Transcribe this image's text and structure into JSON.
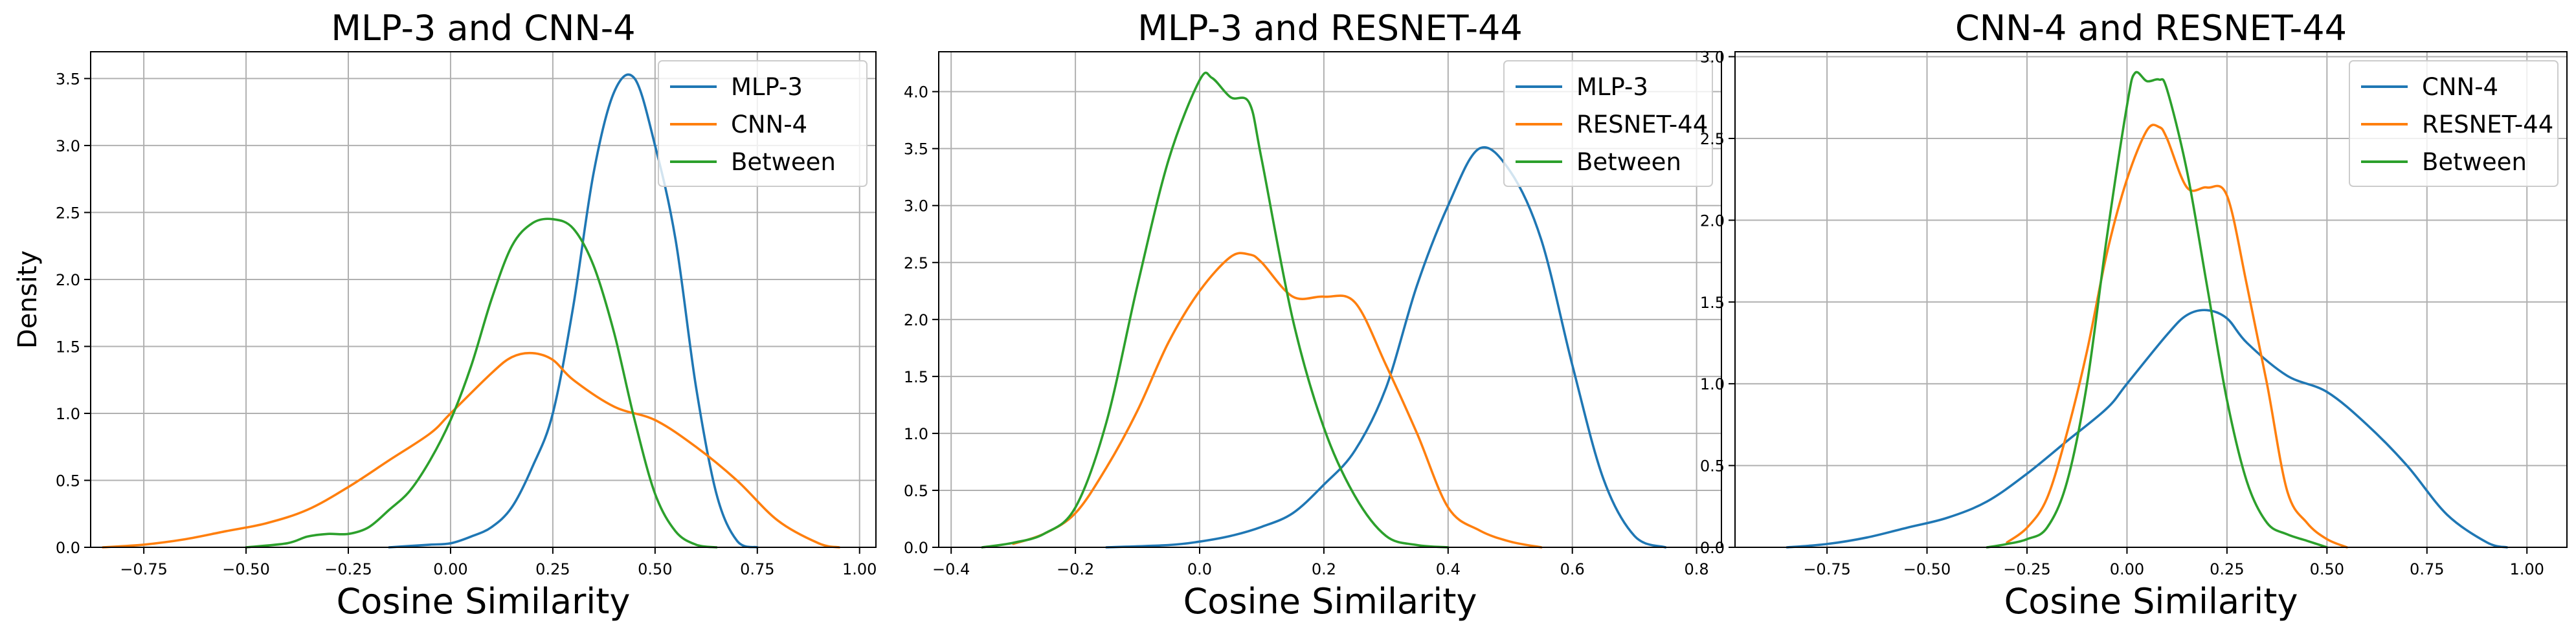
{
  "chart_data": [
    {
      "type": "line",
      "title": "MLP-3 and CNN-4",
      "xlabel": "Cosine Similarity",
      "ylabel": "Density",
      "xlim": [
        -0.88,
        1.04
      ],
      "ylim": [
        0,
        3.7
      ],
      "xticks": [
        -0.75,
        -0.5,
        -0.25,
        0,
        0.25,
        0.5,
        0.75,
        1.0
      ],
      "xtick_labels": [
        "−0.75",
        "−0.50",
        "−0.25",
        "0.00",
        "0.25",
        "0.50",
        "0.75",
        "1.00"
      ],
      "yticks": [
        0,
        0.5,
        1.0,
        1.5,
        2.0,
        2.5,
        3.0,
        3.5
      ],
      "ytick_labels": [
        "0.0",
        "0.5",
        "1.0",
        "1.5",
        "2.0",
        "2.5",
        "3.0",
        "3.5"
      ],
      "grid": true,
      "legend_position": "top-right",
      "series": [
        {
          "name": "MLP-3",
          "color": "#1f77b4",
          "x": [
            -0.15,
            -0.1,
            -0.05,
            0,
            0.05,
            0.1,
            0.15,
            0.2,
            0.25,
            0.3,
            0.35,
            0.4,
            0.45,
            0.5,
            0.55,
            0.6,
            0.65,
            0.7,
            0.75
          ],
          "y": [
            0,
            0.01,
            0.02,
            0.03,
            0.08,
            0.15,
            0.3,
            0.6,
            1.0,
            1.8,
            2.8,
            3.4,
            3.5,
            3.0,
            2.3,
            1.2,
            0.4,
            0.05,
            0
          ]
        },
        {
          "name": "CNN-4",
          "color": "#ff7f0e",
          "x": [
            -0.85,
            -0.75,
            -0.65,
            -0.55,
            -0.45,
            -0.35,
            -0.25,
            -0.15,
            -0.05,
            0,
            0.1,
            0.15,
            0.2,
            0.25,
            0.3,
            0.4,
            0.5,
            0.6,
            0.7,
            0.8,
            0.9,
            0.95
          ],
          "y": [
            0,
            0.02,
            0.06,
            0.12,
            0.18,
            0.28,
            0.45,
            0.65,
            0.85,
            1.0,
            1.3,
            1.42,
            1.45,
            1.4,
            1.25,
            1.05,
            0.95,
            0.75,
            0.5,
            0.2,
            0.03,
            0
          ]
        },
        {
          "name": "Between",
          "color": "#2ca02c",
          "x": [
            -0.5,
            -0.4,
            -0.35,
            -0.3,
            -0.25,
            -0.2,
            -0.15,
            -0.1,
            -0.05,
            0,
            0.05,
            0.1,
            0.15,
            0.2,
            0.25,
            0.3,
            0.35,
            0.4,
            0.45,
            0.5,
            0.55,
            0.6,
            0.65
          ],
          "y": [
            0,
            0.03,
            0.08,
            0.1,
            0.1,
            0.15,
            0.28,
            0.42,
            0.65,
            0.95,
            1.35,
            1.85,
            2.25,
            2.42,
            2.45,
            2.38,
            2.1,
            1.6,
            0.95,
            0.4,
            0.12,
            0.02,
            0
          ]
        }
      ]
    },
    {
      "type": "line",
      "title": "MLP-3 and RESNET-44",
      "xlabel": "Cosine Similarity",
      "ylabel": "",
      "xlim": [
        -0.42,
        0.84
      ],
      "ylim": [
        0,
        4.35
      ],
      "xticks": [
        -0.4,
        -0.2,
        0,
        0.2,
        0.4,
        0.6,
        0.8
      ],
      "xtick_labels": [
        "−0.4",
        "−0.2",
        "0.0",
        "0.2",
        "0.4",
        "0.6",
        "0.8"
      ],
      "yticks": [
        0,
        0.5,
        1.0,
        1.5,
        2.0,
        2.5,
        3.0,
        3.5,
        4.0
      ],
      "ytick_labels": [
        "0.0",
        "0.5",
        "1.0",
        "1.5",
        "2.0",
        "2.5",
        "3.0",
        "3.5",
        "4.0"
      ],
      "grid": true,
      "legend_position": "top-right",
      "series": [
        {
          "name": "MLP-3",
          "color": "#1f77b4",
          "x": [
            -0.15,
            -0.05,
            0,
            0.05,
            0.1,
            0.15,
            0.2,
            0.25,
            0.3,
            0.35,
            0.4,
            0.45,
            0.5,
            0.55,
            0.6,
            0.65,
            0.7,
            0.75
          ],
          "y": [
            0,
            0.02,
            0.05,
            0.1,
            0.18,
            0.3,
            0.55,
            0.85,
            1.4,
            2.3,
            3.0,
            3.5,
            3.3,
            2.7,
            1.6,
            0.6,
            0.1,
            0
          ]
        },
        {
          "name": "RESNET-44",
          "color": "#ff7f0e",
          "x": [
            -0.3,
            -0.25,
            -0.2,
            -0.15,
            -0.1,
            -0.05,
            0,
            0.05,
            0.08,
            0.1,
            0.15,
            0.2,
            0.25,
            0.3,
            0.35,
            0.4,
            0.45,
            0.5,
            0.55
          ],
          "y": [
            0.03,
            0.12,
            0.3,
            0.7,
            1.2,
            1.8,
            2.25,
            2.55,
            2.57,
            2.5,
            2.2,
            2.2,
            2.15,
            1.6,
            1.0,
            0.35,
            0.15,
            0.05,
            0
          ]
        },
        {
          "name": "Between",
          "color": "#2ca02c",
          "x": [
            -0.35,
            -0.3,
            -0.25,
            -0.2,
            -0.15,
            -0.1,
            -0.05,
            0,
            0.02,
            0.05,
            0.08,
            0.1,
            0.15,
            0.2,
            0.25,
            0.3,
            0.35,
            0.4
          ],
          "y": [
            0,
            0.04,
            0.12,
            0.35,
            1.1,
            2.3,
            3.4,
            4.1,
            4.12,
            3.95,
            3.9,
            3.4,
            2.0,
            1.05,
            0.45,
            0.1,
            0.02,
            0
          ]
        }
      ]
    },
    {
      "type": "line",
      "title": "CNN-4 and RESNET-44",
      "xlabel": "Cosine Similarity",
      "ylabel": "",
      "xlim": [
        -0.98,
        1.1
      ],
      "ylim": [
        0,
        3.03
      ],
      "xticks": [
        -0.75,
        -0.5,
        -0.25,
        0,
        0.25,
        0.5,
        0.75,
        1.0
      ],
      "xtick_labels": [
        "−0.75",
        "−0.50",
        "−0.25",
        "0.00",
        "0.25",
        "0.50",
        "0.75",
        "1.00"
      ],
      "yticks": [
        0,
        0.5,
        1.0,
        1.5,
        2.0,
        2.5,
        3.0
      ],
      "ytick_labels": [
        "0.0",
        "0.5",
        "1.0",
        "1.5",
        "2.0",
        "2.5",
        "3.0"
      ],
      "grid": true,
      "legend_position": "top-right",
      "series": [
        {
          "name": "CNN-4",
          "color": "#1f77b4",
          "x": [
            -0.85,
            -0.75,
            -0.65,
            -0.55,
            -0.45,
            -0.35,
            -0.25,
            -0.15,
            -0.05,
            0,
            0.1,
            0.15,
            0.2,
            0.25,
            0.3,
            0.4,
            0.5,
            0.6,
            0.7,
            0.8,
            0.9,
            0.95
          ],
          "y": [
            0,
            0.02,
            0.06,
            0.12,
            0.18,
            0.28,
            0.45,
            0.65,
            0.85,
            1.0,
            1.3,
            1.42,
            1.45,
            1.4,
            1.25,
            1.05,
            0.95,
            0.75,
            0.5,
            0.2,
            0.03,
            0
          ]
        },
        {
          "name": "RESNET-44",
          "color": "#ff7f0e",
          "x": [
            -0.3,
            -0.25,
            -0.2,
            -0.15,
            -0.1,
            -0.05,
            0,
            0.05,
            0.08,
            0.1,
            0.15,
            0.2,
            0.25,
            0.3,
            0.35,
            0.4,
            0.45,
            0.5,
            0.55
          ],
          "y": [
            0.03,
            0.12,
            0.3,
            0.7,
            1.2,
            1.8,
            2.25,
            2.55,
            2.57,
            2.5,
            2.2,
            2.2,
            2.15,
            1.6,
            1.0,
            0.35,
            0.15,
            0.05,
            0
          ]
        },
        {
          "name": "Between",
          "color": "#2ca02c",
          "x": [
            -0.35,
            -0.3,
            -0.25,
            -0.2,
            -0.15,
            -0.1,
            -0.05,
            0,
            0.02,
            0.05,
            0.08,
            0.1,
            0.15,
            0.2,
            0.25,
            0.3,
            0.35,
            0.4,
            0.45,
            0.5
          ],
          "y": [
            0,
            0.02,
            0.05,
            0.12,
            0.4,
            1.0,
            1.9,
            2.7,
            2.9,
            2.85,
            2.86,
            2.8,
            2.3,
            1.6,
            0.9,
            0.4,
            0.15,
            0.08,
            0.04,
            0
          ]
        }
      ]
    }
  ]
}
